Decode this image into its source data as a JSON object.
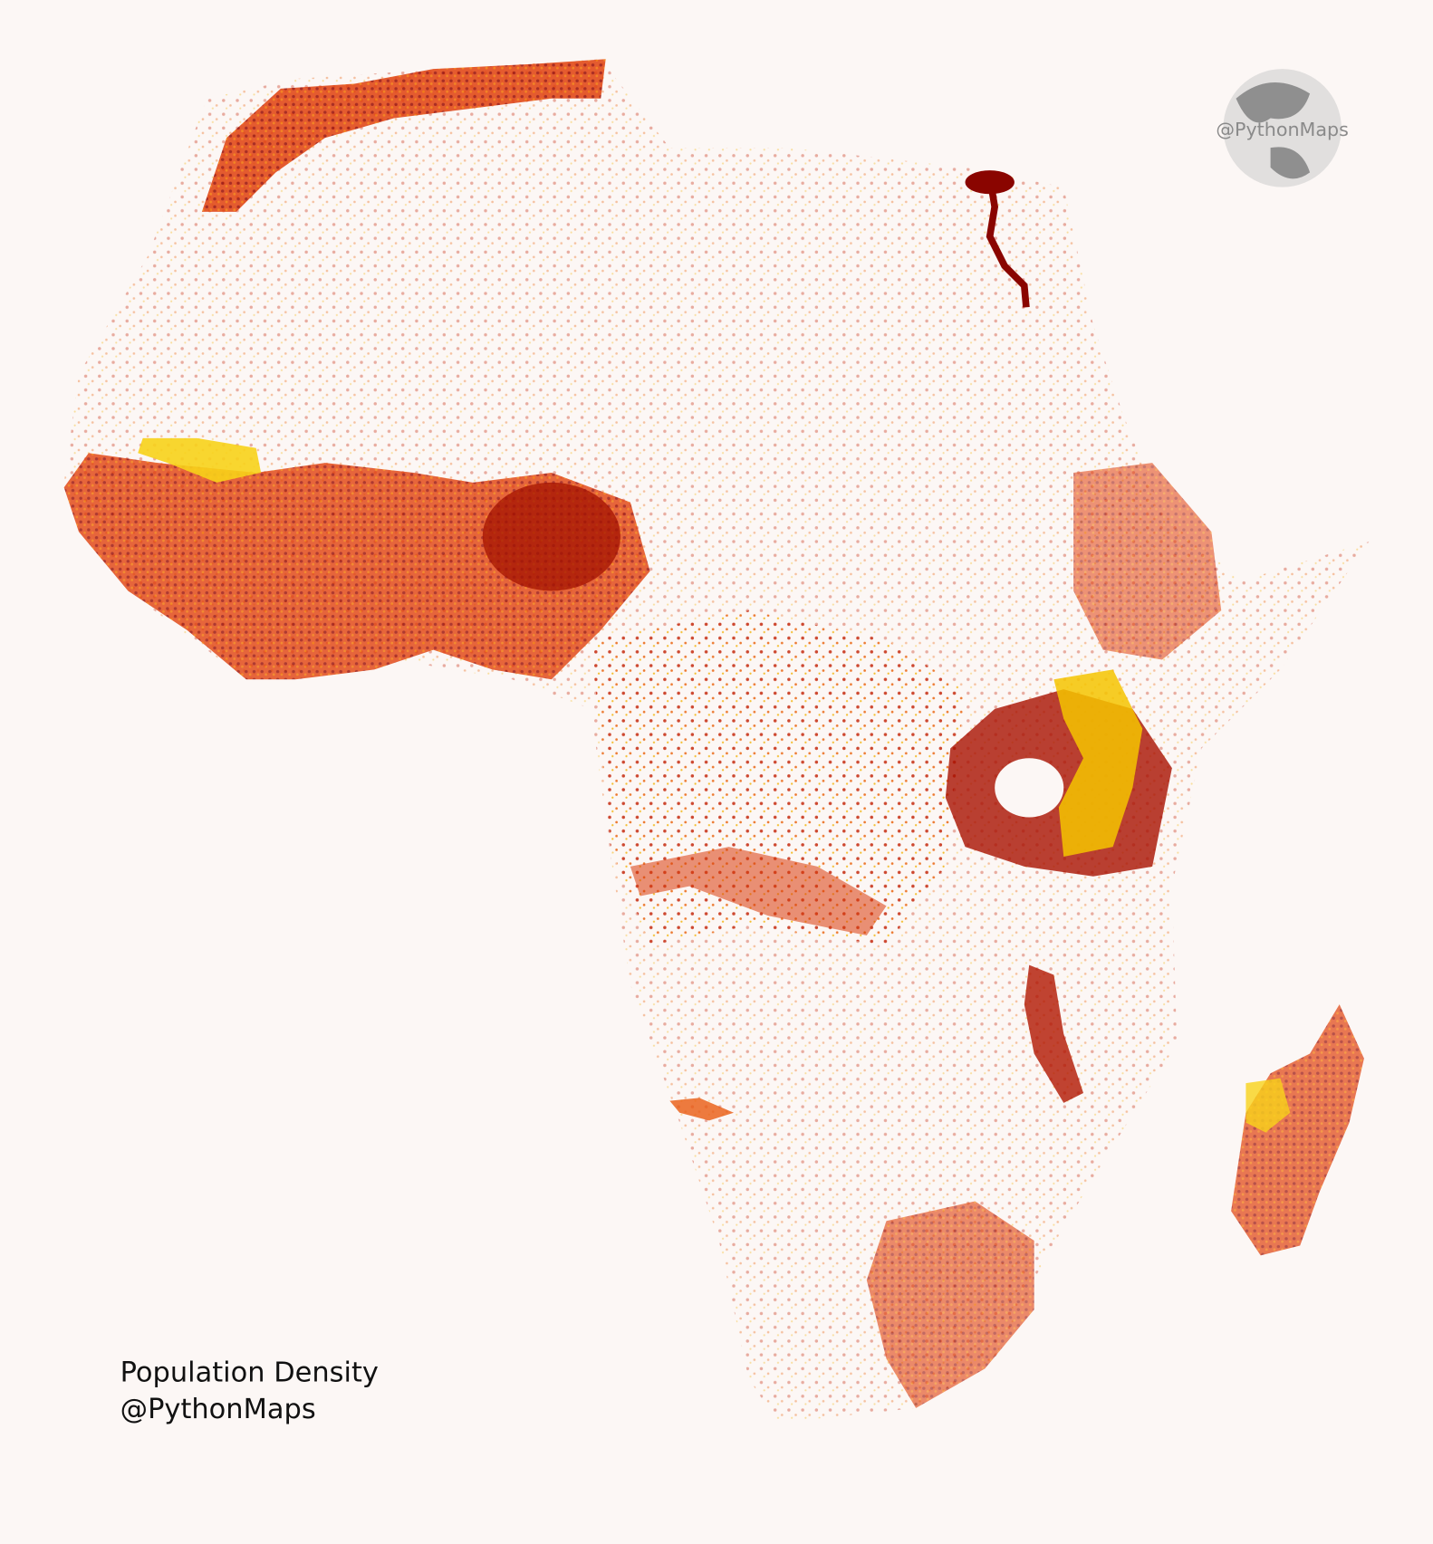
{
  "map": {
    "caption": {
      "title": "Population Density",
      "credit": "@PythonMaps"
    },
    "logo": {
      "label": "@PythonMaps"
    }
  }
}
